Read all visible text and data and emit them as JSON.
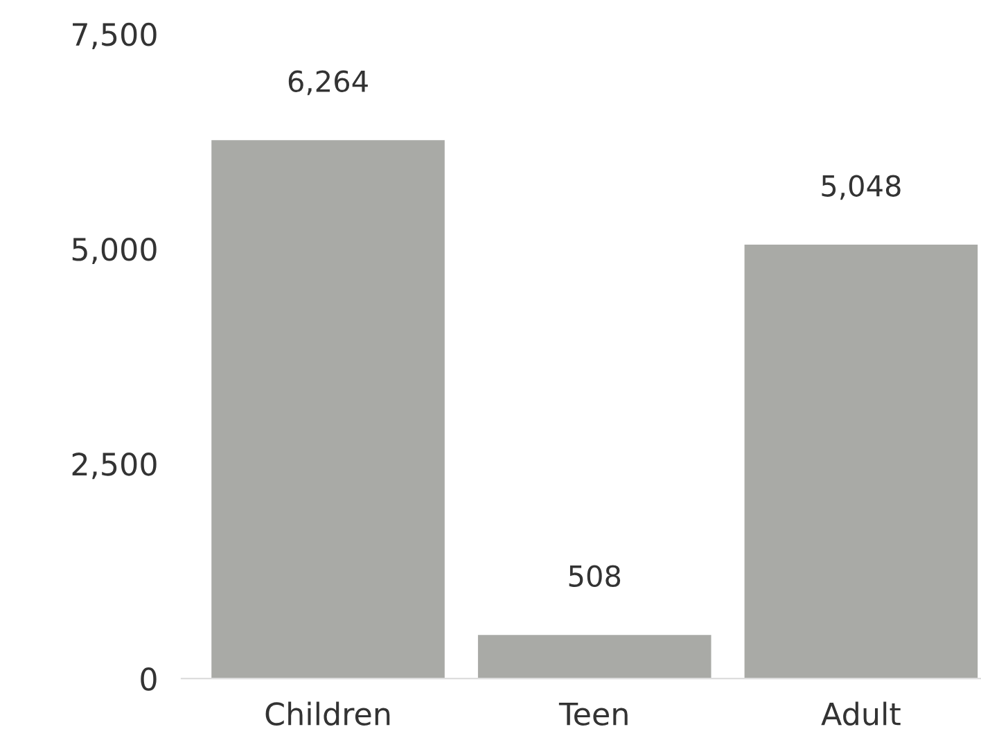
{
  "chart_data": {
    "type": "bar",
    "categories": [
      "Children",
      "Teen",
      "Adult"
    ],
    "values": [
      6264,
      508,
      5048
    ],
    "value_labels": [
      "6,264",
      "508",
      "5,048"
    ],
    "color": "#a9aaa6",
    "ylim": [
      0,
      7500
    ],
    "yticks": [
      {
        "value": 0,
        "label": "0"
      },
      {
        "value": 2500,
        "label": "2,500"
      },
      {
        "value": 5000,
        "label": "5,000"
      },
      {
        "value": 7500,
        "label": "7,500"
      }
    ],
    "grid": false
  }
}
